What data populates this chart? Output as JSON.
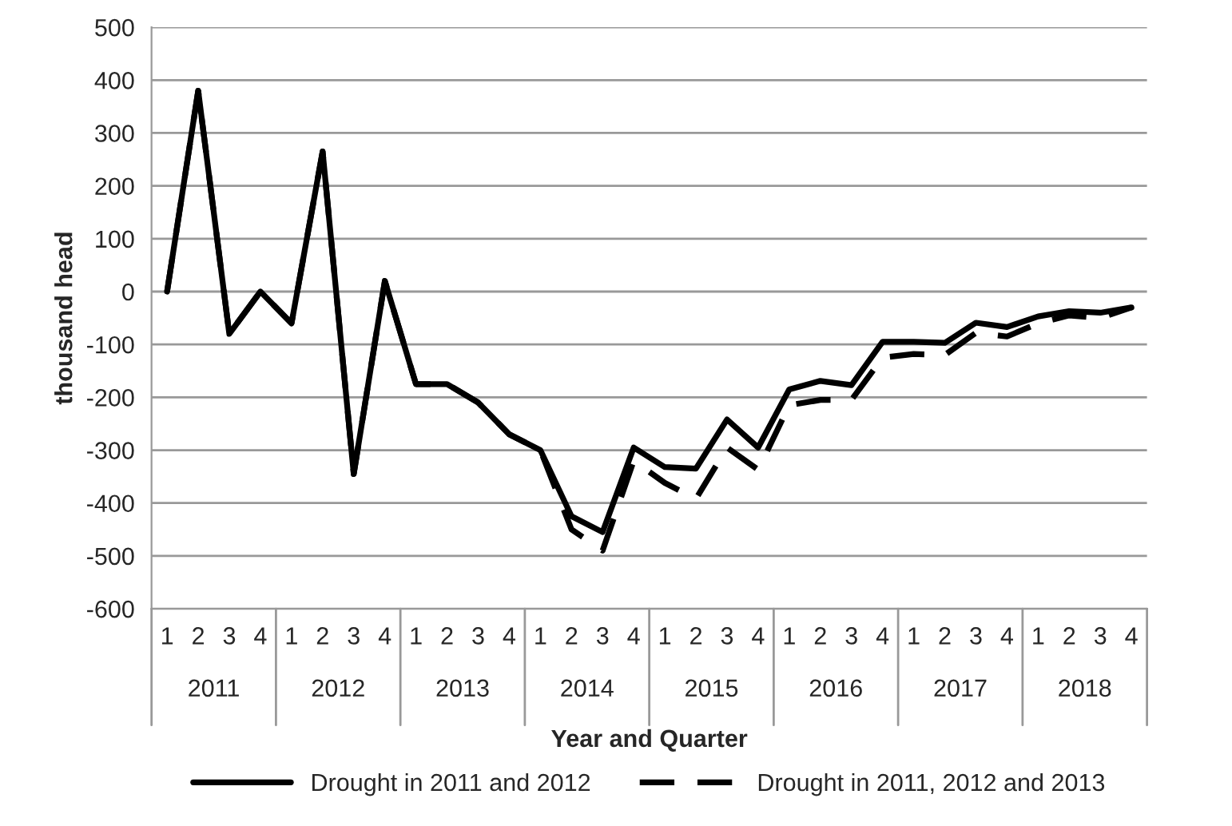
{
  "chart_data": {
    "type": "line",
    "xlabel": "Year and Quarter",
    "ylabel": "thousand head",
    "categories": [
      "1",
      "2",
      "3",
      "4",
      "1",
      "2",
      "3",
      "4",
      "1",
      "2",
      "3",
      "4",
      "1",
      "2",
      "3",
      "4",
      "1",
      "2",
      "3",
      "4",
      "1",
      "2",
      "3",
      "4",
      "1",
      "2",
      "3",
      "4",
      "1",
      "2",
      "3",
      "4"
    ],
    "annotations": [
      "2011",
      "2012",
      "2013",
      "2014",
      "2015",
      "2016",
      "2017",
      "2018"
    ],
    "series": [
      {
        "name": "Drought in 2011 and 2012",
        "color": "#000000",
        "line_style": "solid",
        "values": [
          0,
          380,
          -80,
          0,
          -60,
          265,
          -345,
          20,
          -175,
          -175,
          -210,
          -270,
          -300,
          -425,
          -455,
          -295,
          -332,
          -335,
          -242,
          -295,
          -185,
          -169,
          -177,
          -95,
          -95,
          -97,
          -59,
          -67,
          -47,
          -37,
          -40,
          -30
        ]
      },
      {
        "name": "Drought in 2011, 2012 and 2013",
        "color": "#000000",
        "line_style": "dashed",
        "values": [
          0,
          380,
          -80,
          0,
          -60,
          265,
          -345,
          20,
          -175,
          -175,
          -210,
          -270,
          -300,
          -450,
          -490,
          -320,
          -362,
          -392,
          -295,
          -337,
          -215,
          -205,
          -205,
          -125,
          -118,
          -120,
          -78,
          -85,
          -60,
          -45,
          -50,
          -30
        ]
      }
    ],
    "ylim": [
      -600,
      500
    ],
    "yticks": [
      -600,
      -500,
      -400,
      -300,
      -200,
      -100,
      0,
      100,
      200,
      300,
      400,
      500
    ],
    "grid": "y",
    "legend": "bottom",
    "marker": "none"
  }
}
